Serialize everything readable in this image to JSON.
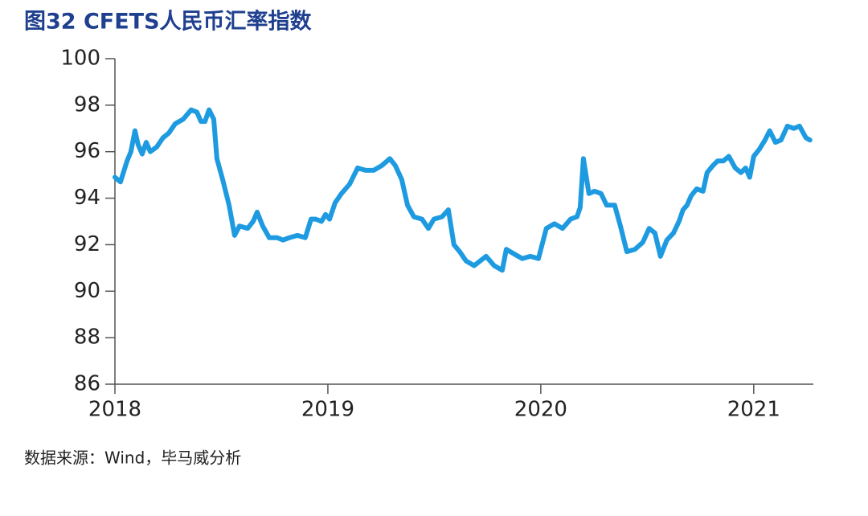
{
  "chart_data": {
    "type": "line",
    "title": "图32 CFETS人民币汇率指数",
    "source": "数据来源：Wind，毕马威分析",
    "xlim": [
      2018,
      2021.28
    ],
    "xticks": [
      2018,
      2019,
      2020,
      2021
    ],
    "ylim": [
      86,
      100
    ],
    "yticks": [
      86,
      88,
      90,
      92,
      94,
      96,
      98,
      100
    ],
    "x": [
      2018.0,
      2018.026,
      2018.057,
      2018.075,
      2018.094,
      2018.109,
      2018.128,
      2018.147,
      2018.166,
      2018.196,
      2018.226,
      2018.253,
      2018.283,
      2018.321,
      2018.358,
      2018.385,
      2018.404,
      2018.423,
      2018.442,
      2018.464,
      2018.479,
      2018.506,
      2018.536,
      2018.562,
      2018.585,
      2018.623,
      2018.649,
      2018.668,
      2018.694,
      2018.725,
      2018.762,
      2018.789,
      2018.819,
      2018.857,
      2018.894,
      2018.921,
      2018.943,
      2018.97,
      2018.989,
      2019.008,
      2019.034,
      2019.064,
      2019.102,
      2019.14,
      2019.177,
      2019.215,
      2019.253,
      2019.291,
      2019.317,
      2019.347,
      2019.374,
      2019.404,
      2019.442,
      2019.472,
      2019.498,
      2019.536,
      2019.566,
      2019.592,
      2019.619,
      2019.649,
      2019.687,
      2019.743,
      2019.781,
      2019.819,
      2019.838,
      2019.875,
      2019.913,
      2019.951,
      2019.989,
      2020.026,
      2020.064,
      2020.102,
      2020.14,
      2020.17,
      2020.185,
      2020.2,
      2020.226,
      2020.253,
      2020.283,
      2020.309,
      2020.347,
      2020.374,
      2020.404,
      2020.442,
      2020.479,
      2020.509,
      2020.536,
      2020.562,
      2020.592,
      2020.623,
      2020.649,
      2020.668,
      2020.687,
      2020.706,
      2020.732,
      2020.762,
      2020.781,
      2020.808,
      2020.83,
      2020.857,
      2020.883,
      2020.913,
      2020.94,
      2020.962,
      2020.981,
      2021.0,
      2021.026,
      2021.053,
      2021.075,
      2021.102,
      2021.128,
      2021.158,
      2021.189,
      2021.215,
      2021.245,
      2021.264
    ],
    "series": [
      {
        "name": "CFETS人民币汇率指数",
        "color": "#1e9be0",
        "values": [
          94.9,
          94.7,
          95.6,
          96.0,
          96.9,
          96.3,
          95.9,
          96.4,
          96.0,
          96.2,
          96.6,
          96.8,
          97.2,
          97.4,
          97.8,
          97.7,
          97.3,
          97.3,
          97.8,
          97.4,
          95.7,
          94.8,
          93.7,
          92.4,
          92.8,
          92.7,
          93.0,
          93.4,
          92.8,
          92.3,
          92.3,
          92.2,
          92.3,
          92.4,
          92.3,
          93.1,
          93.1,
          93.0,
          93.3,
          93.1,
          93.8,
          94.2,
          94.6,
          95.3,
          95.2,
          95.2,
          95.4,
          95.7,
          95.4,
          94.8,
          93.7,
          93.2,
          93.1,
          92.7,
          93.1,
          93.2,
          93.5,
          92.0,
          91.7,
          91.3,
          91.1,
          91.5,
          91.1,
          90.9,
          91.8,
          91.6,
          91.4,
          91.5,
          91.4,
          92.7,
          92.9,
          92.7,
          93.1,
          93.2,
          93.6,
          95.7,
          94.2,
          94.3,
          94.2,
          93.7,
          93.7,
          92.8,
          91.7,
          91.8,
          92.1,
          92.7,
          92.5,
          91.5,
          92.2,
          92.5,
          93.0,
          93.5,
          93.7,
          94.1,
          94.4,
          94.3,
          95.1,
          95.4,
          95.6,
          95.6,
          95.8,
          95.3,
          95.1,
          95.3,
          94.9,
          95.8,
          96.1,
          96.5,
          96.9,
          96.4,
          96.5,
          97.1,
          97.0,
          97.1,
          96.6,
          96.5
        ]
      }
    ]
  }
}
